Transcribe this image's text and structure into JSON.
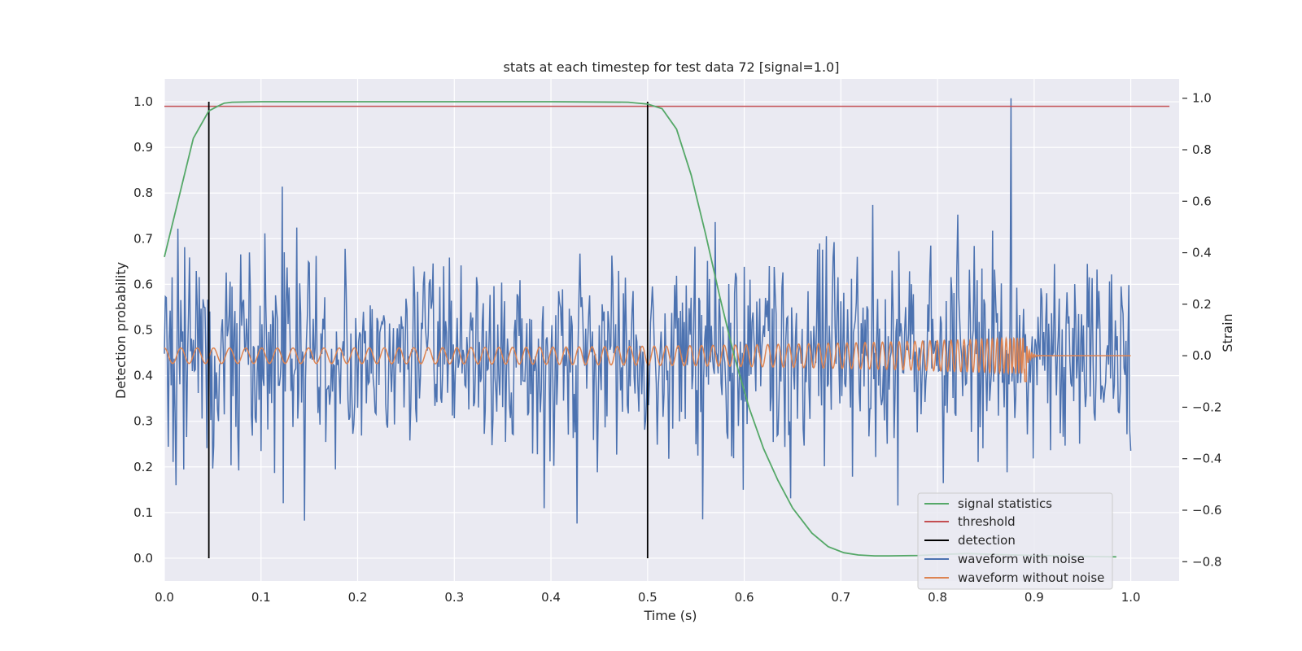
{
  "chart_data": {
    "type": "line",
    "title": "stats at each timestep for test data 72 [signal=1.0]",
    "xlabel": "Time (s)",
    "ylabel_left": "Detection probability",
    "ylabel_right": "Strain",
    "xlim": [
      0.0,
      1.05
    ],
    "ylim_left": [
      -0.05,
      1.05
    ],
    "ylim_right": [
      -0.875,
      1.075
    ],
    "x_ticks": [
      0.0,
      0.1,
      0.2,
      0.3,
      0.4,
      0.5,
      0.6,
      0.7,
      0.8,
      0.9,
      1.0
    ],
    "x_tick_labels": [
      "0.0",
      "0.1",
      "0.2",
      "0.3",
      "0.4",
      "0.5",
      "0.6",
      "0.7",
      "0.8",
      "0.9",
      "1.0"
    ],
    "y_left_ticks": [
      0.0,
      0.1,
      0.2,
      0.3,
      0.4,
      0.5,
      0.6,
      0.7,
      0.8,
      0.9,
      1.0
    ],
    "y_left_tick_labels": [
      "0.0",
      "0.1",
      "0.2",
      "0.3",
      "0.4",
      "0.5",
      "0.6",
      "0.7",
      "0.8",
      "0.9",
      "1.0"
    ],
    "y_right_ticks": [
      -0.8,
      -0.6,
      -0.4,
      -0.2,
      0.0,
      0.2,
      0.4,
      0.6,
      0.8,
      1.0
    ],
    "y_right_tick_labels": [
      "−0.8",
      "−0.6",
      "−0.4",
      "−0.2",
      "0.0",
      "0.2",
      "0.4",
      "0.6",
      "0.8",
      "1.0"
    ],
    "grid": true,
    "legend_position": "bottom-right",
    "series": [
      {
        "name": "signal statistics",
        "axis": "left",
        "color": "#55a868",
        "x": [
          0.0,
          0.015,
          0.03,
          0.046,
          0.055,
          0.062,
          0.07,
          0.1,
          0.2,
          0.3,
          0.4,
          0.48,
          0.5,
          0.515,
          0.53,
          0.545,
          0.56,
          0.575,
          0.59,
          0.605,
          0.62,
          0.635,
          0.65,
          0.67,
          0.687,
          0.703,
          0.718,
          0.735,
          0.75,
          0.78,
          0.8,
          0.83,
          0.9,
          0.95,
          0.985
        ],
        "y": [
          0.66,
          0.79,
          0.92,
          0.98,
          0.99,
          0.997,
          0.999,
          1.0,
          1.0,
          1.0,
          1.0,
          0.999,
          0.995,
          0.985,
          0.94,
          0.84,
          0.71,
          0.57,
          0.44,
          0.33,
          0.24,
          0.17,
          0.11,
          0.055,
          0.025,
          0.012,
          0.007,
          0.005,
          0.005,
          0.006,
          0.008,
          0.01,
          0.006,
          0.004,
          0.003
        ]
      },
      {
        "name": "threshold",
        "axis": "left",
        "color": "#c44e52",
        "x": [
          0.0,
          1.04
        ],
        "y": [
          0.99,
          0.99
        ]
      },
      {
        "name": "detection",
        "axis": "left",
        "color": "#000000",
        "x": [
          0.046,
          0.5
        ],
        "y_range": [
          0.0,
          1.0
        ]
      },
      {
        "name": "waveform with noise",
        "axis": "right",
        "color": "#4c72b0",
        "x_range": [
          0.0,
          1.0
        ],
        "points": 1000,
        "y_std": 0.2,
        "y_min": -0.8,
        "y_max": 1.0,
        "y_max_at": 0.876
      },
      {
        "name": "waveform without noise",
        "axis": "right",
        "color": "#dd8452",
        "x_range": [
          0.0,
          1.0
        ],
        "y_amplitude_start": 0.03,
        "y_amplitude_peak": 0.07,
        "merger_time": 0.89,
        "y_min": -0.1
      }
    ]
  }
}
